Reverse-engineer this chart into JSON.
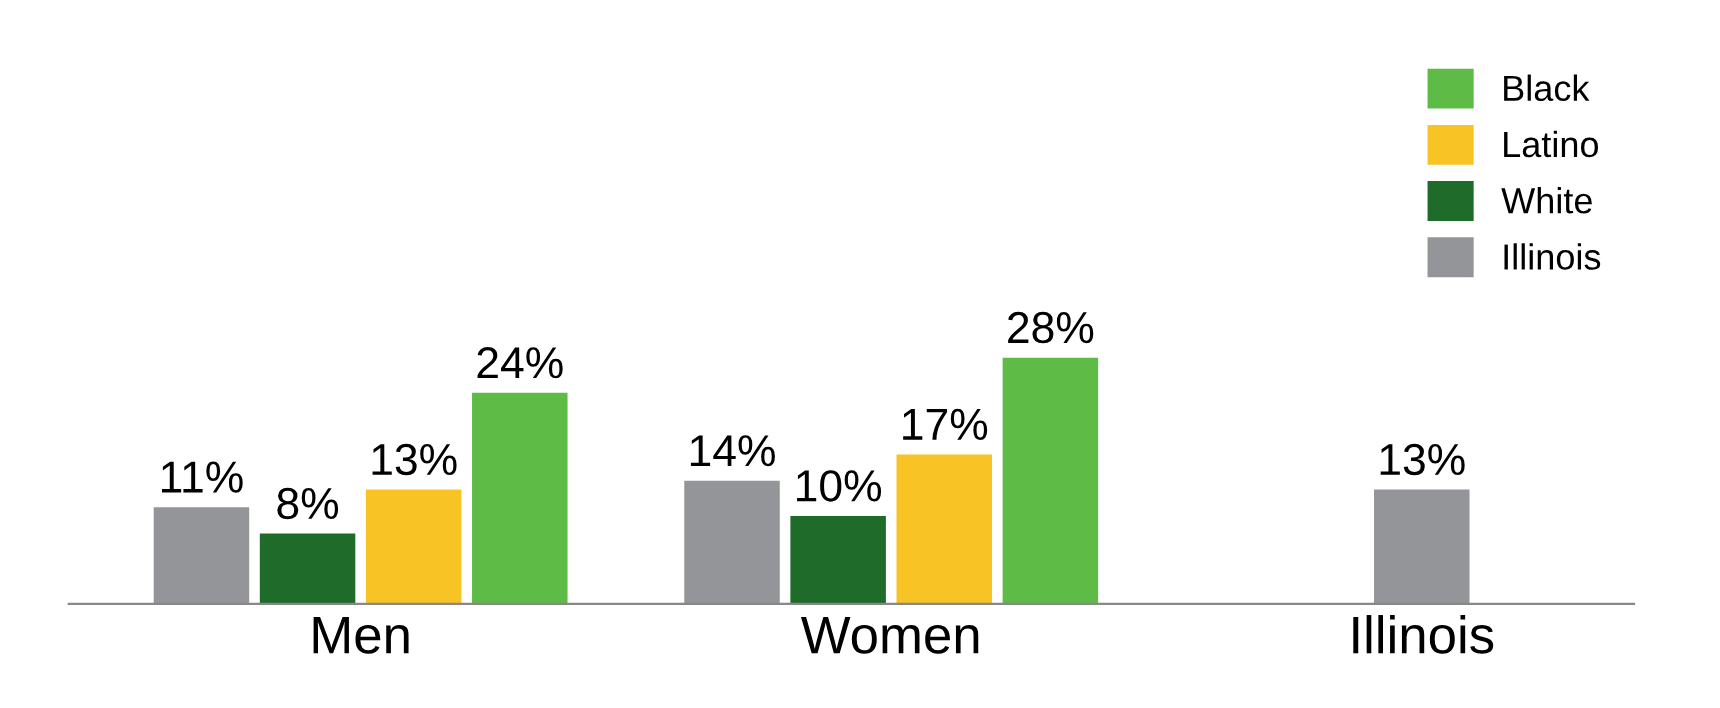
{
  "chart_data": {
    "type": "bar",
    "categories": [
      "Men",
      "Women",
      "Illinois"
    ],
    "series": [
      {
        "name": "Illinois",
        "color": "#939598",
        "values": [
          11,
          14,
          13
        ],
        "value_labels": [
          "11%",
          "14%",
          "13%"
        ]
      },
      {
        "name": "White",
        "color": "#1f6b29",
        "values": [
          8,
          10,
          null
        ],
        "value_labels": [
          "8%",
          "10%",
          null
        ]
      },
      {
        "name": "Latino",
        "color": "#f8c325",
        "values": [
          13,
          17,
          null
        ],
        "value_labels": [
          "13%",
          "17%",
          null
        ]
      },
      {
        "name": "Black",
        "color": "#5dbb46",
        "values": [
          24,
          28,
          null
        ],
        "value_labels": [
          "24%",
          "28%",
          null
        ]
      }
    ],
    "legend": "top right",
    "grid": false
  }
}
